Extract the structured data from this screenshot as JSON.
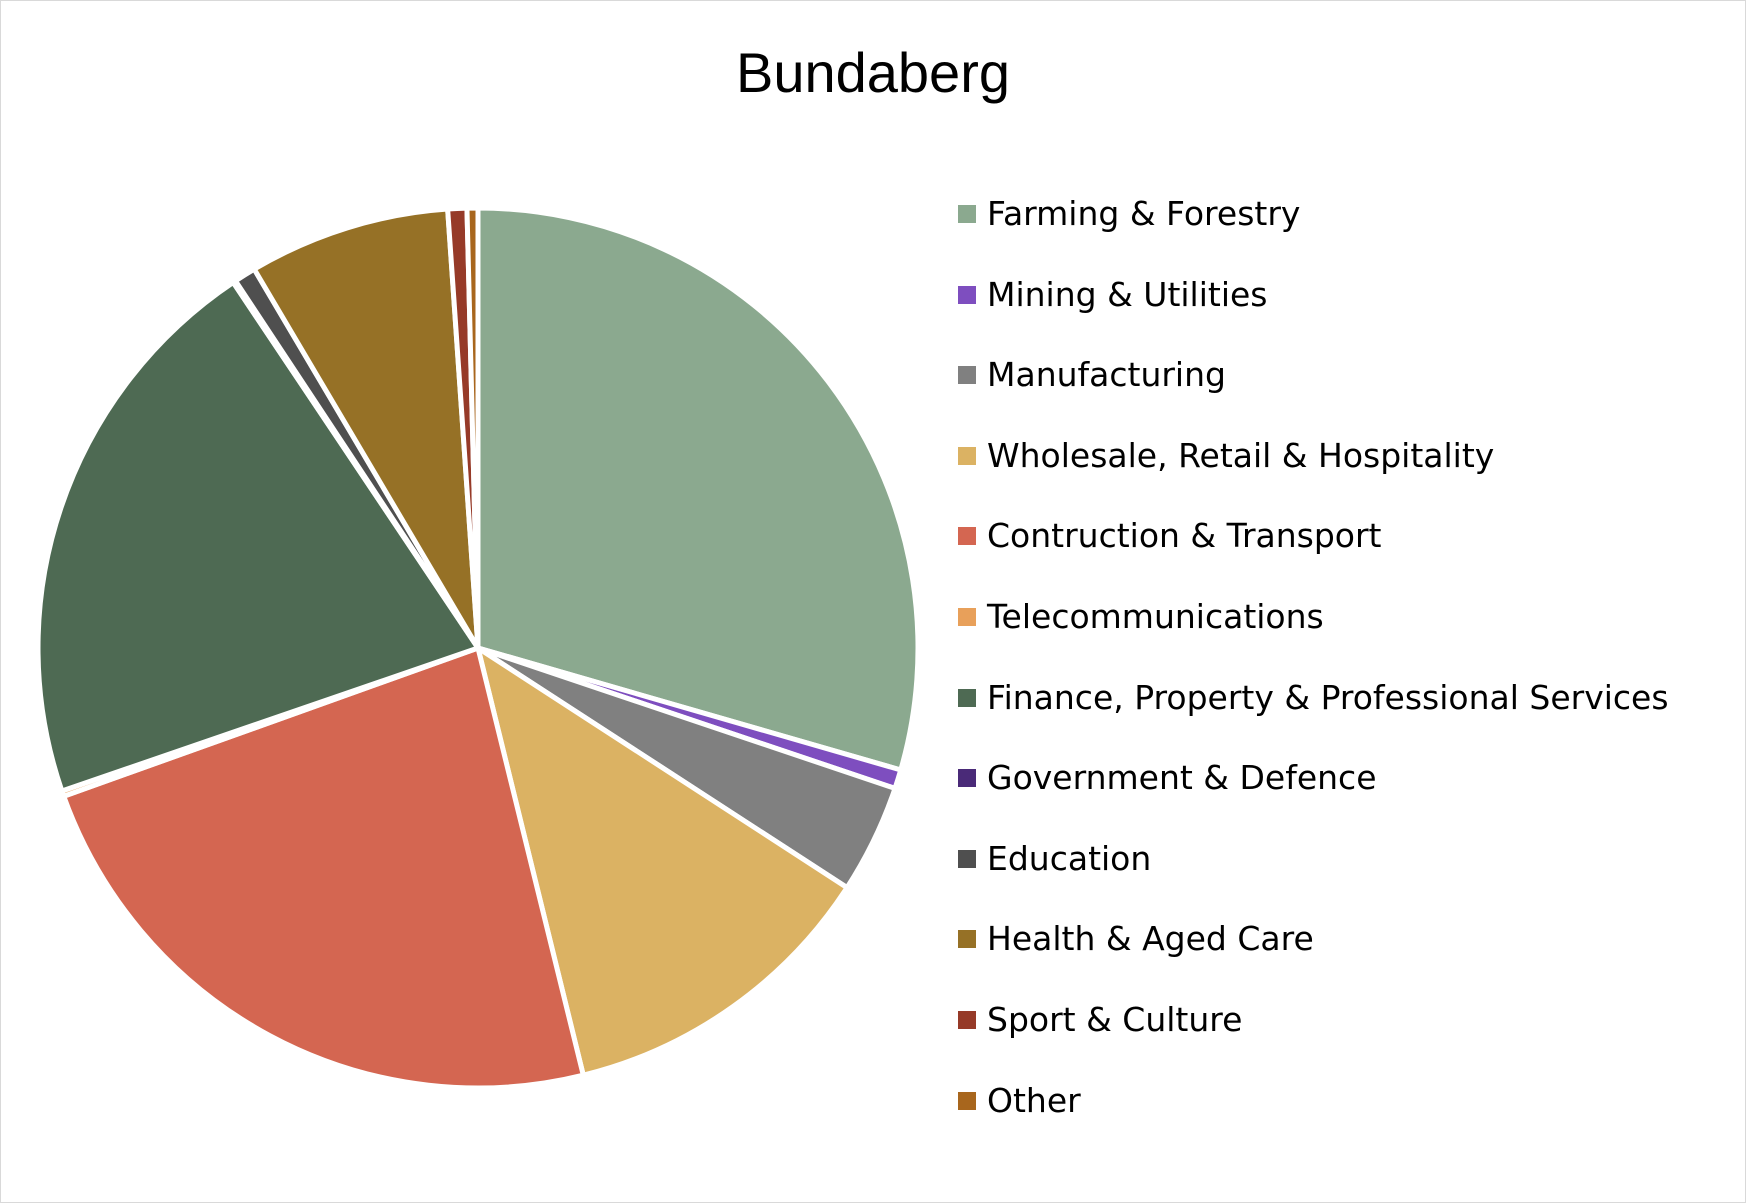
{
  "chart_data": {
    "type": "pie",
    "title": "Bundaberg",
    "legend_position": "right",
    "slices": [
      {
        "label": "Farming & Forestry",
        "value": 29.5,
        "color": "#8BA98F"
      },
      {
        "label": "Mining & Utilities",
        "value": 0.7,
        "color": "#7E4EBF"
      },
      {
        "label": "Manufacturing",
        "value": 4.0,
        "color": "#808080"
      },
      {
        "label": "Wholesale, Retail & Hospitality",
        "value": 12.0,
        "color": "#DBB263"
      },
      {
        "label": "Contruction & Transport",
        "value": 23.4,
        "color": "#D46651"
      },
      {
        "label": "Telecommunications",
        "value": 0.2,
        "color": "#E8A05A"
      },
      {
        "label": "Finance, Property & Professional Services",
        "value": 20.9,
        "color": "#4E6A53"
      },
      {
        "label": "Government & Defence",
        "value": 0.1,
        "color": "#4A2A78"
      },
      {
        "label": "Education",
        "value": 0.8,
        "color": "#4F4F4F"
      },
      {
        "label": "Health & Aged Care",
        "value": 7.4,
        "color": "#967126"
      },
      {
        "label": "Sport & Culture",
        "value": 0.7,
        "color": "#963A28"
      },
      {
        "label": "Other",
        "value": 0.4,
        "color": "#A8661D"
      }
    ]
  }
}
